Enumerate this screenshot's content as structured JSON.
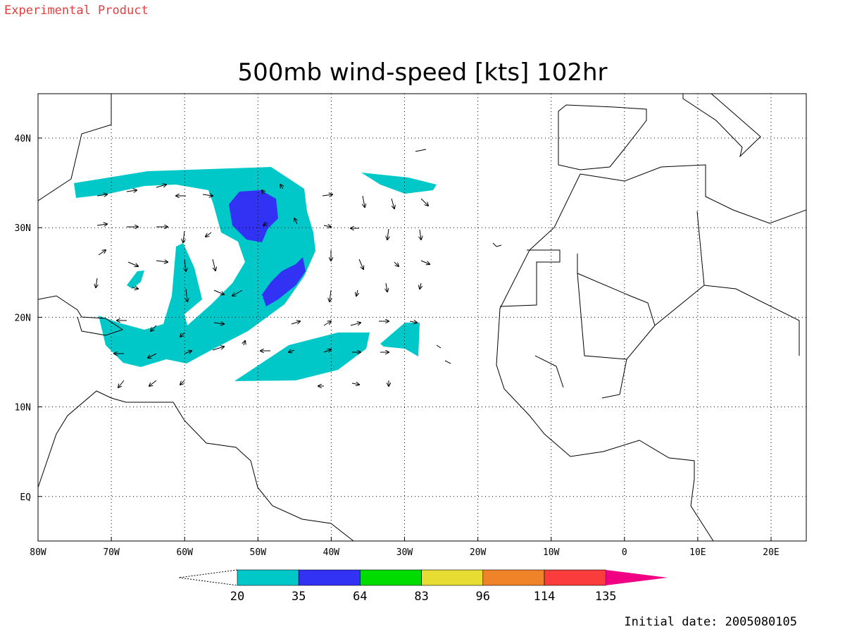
{
  "header": {
    "note": "Experimental Product"
  },
  "title": "500mb wind-speed [kts] 102hr",
  "map": {
    "lat_labels": [
      "40N",
      "30N",
      "20N",
      "10N",
      "EQ"
    ],
    "lon_labels": [
      "80W",
      "70W",
      "60W",
      "50W",
      "40W",
      "30W",
      "20W",
      "10W",
      "0",
      "10E",
      "20E"
    ]
  },
  "colorbar": {
    "colors": [
      "#00c8c8",
      "#3232f5",
      "#00dc00",
      "#e6dc32",
      "#f08228",
      "#fa3c3c",
      "#f00082"
    ],
    "labels": [
      "20",
      "35",
      "64",
      "83",
      "96",
      "114",
      "135"
    ]
  },
  "footer": "Initial date: 2005080105"
}
